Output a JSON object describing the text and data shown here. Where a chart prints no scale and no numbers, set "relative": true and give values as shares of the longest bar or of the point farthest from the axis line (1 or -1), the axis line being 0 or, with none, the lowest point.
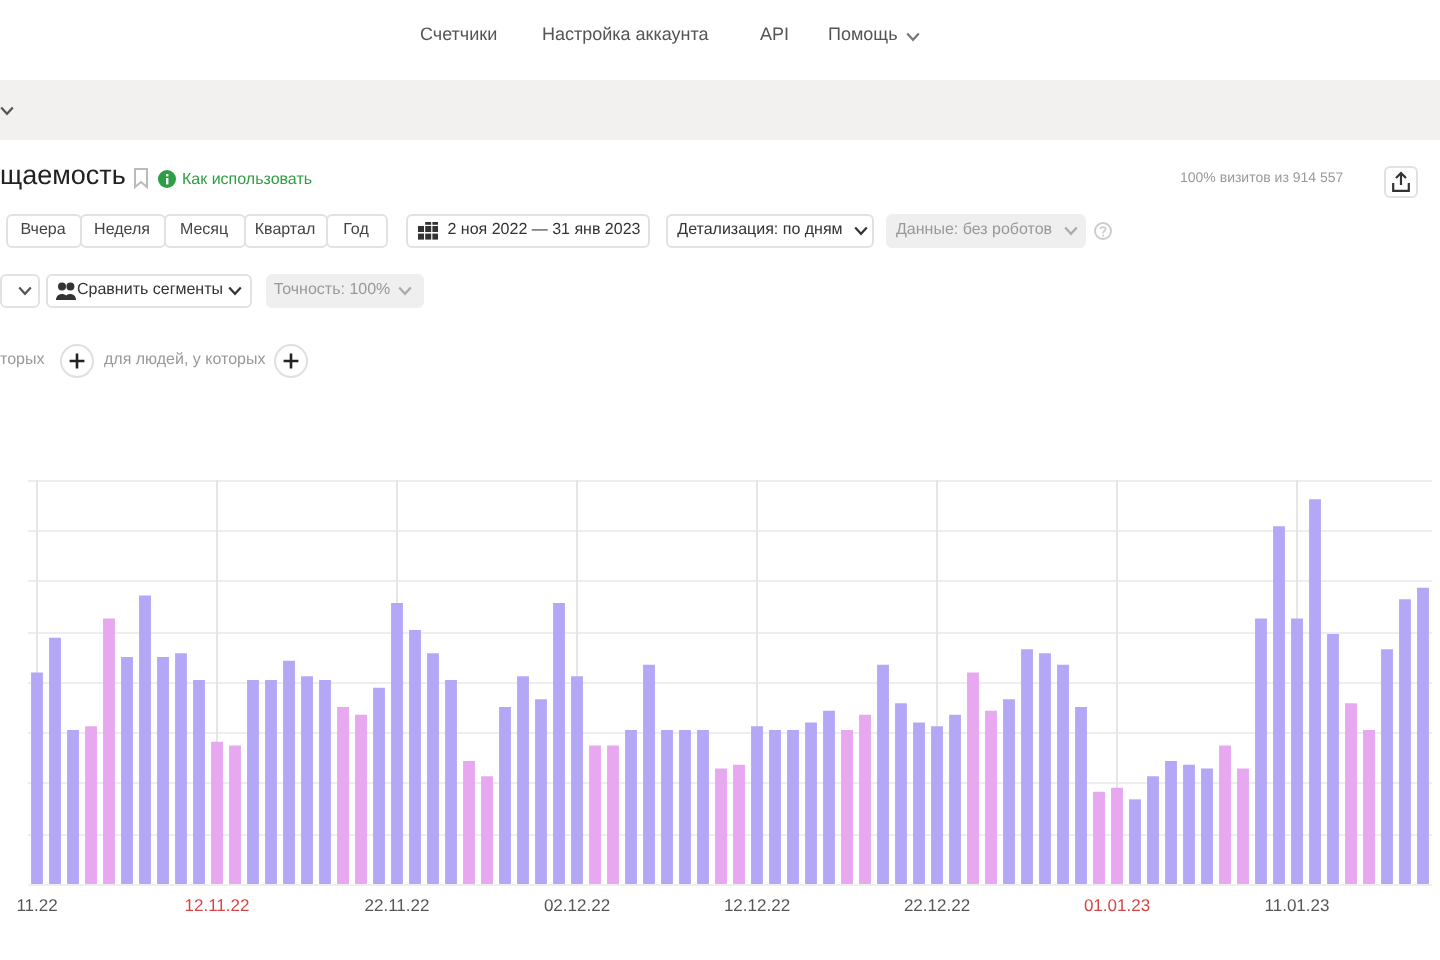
{
  "chart_data": {
    "type": "bar",
    "title": "щаемость",
    "annotations": [
      "Счетчики",
      "Настройка аккаунта",
      "API",
      "Помощь",
      "Как использовать",
      "100% визитов из 914 557",
      "Вчера",
      "Неделя",
      "Месяц",
      "Квартал",
      "Год",
      "2 ноя 2022 — 31 янв 2023",
      "Детализация: по дням",
      "Данные: без роботов",
      "Сравнить сегменты",
      "Точность: 100%",
      "торых",
      "для людей, у которых"
    ],
    "x": [
      "2022-11-02",
      "2022-11-03",
      "2022-11-04",
      "2022-11-05",
      "2022-11-06",
      "2022-11-07",
      "2022-11-08",
      "2022-11-09",
      "2022-11-10",
      "2022-11-11",
      "2022-11-12",
      "2022-11-13",
      "2022-11-14",
      "2022-11-15",
      "2022-11-16",
      "2022-11-17",
      "2022-11-18",
      "2022-11-19",
      "2022-11-20",
      "2022-11-21",
      "2022-11-22",
      "2022-11-23",
      "2022-11-24",
      "2022-11-25",
      "2022-11-26",
      "2022-11-27",
      "2022-11-28",
      "2022-11-29",
      "2022-11-30",
      "2022-12-01",
      "2022-12-02",
      "2022-12-03",
      "2022-12-04",
      "2022-12-05",
      "2022-12-06",
      "2022-12-07",
      "2022-12-08",
      "2022-12-09",
      "2022-12-10",
      "2022-12-11",
      "2022-12-12",
      "2022-12-13",
      "2022-12-14",
      "2022-12-15",
      "2022-12-16",
      "2022-12-17",
      "2022-12-18",
      "2022-12-19",
      "2022-12-20",
      "2022-12-21",
      "2022-12-22",
      "2022-12-23",
      "2022-12-24",
      "2022-12-25",
      "2022-12-26",
      "2022-12-27",
      "2022-12-28",
      "2022-12-29",
      "2022-12-30",
      "2022-12-31",
      "2023-01-01",
      "2023-01-02",
      "2023-01-03",
      "2023-01-04",
      "2023-01-05",
      "2023-01-06",
      "2023-01-07",
      "2023-01-08",
      "2023-01-09",
      "2023-01-10",
      "2023-01-11",
      "2023-01-12",
      "2023-01-13",
      "2023-01-14",
      "2023-01-15",
      "2023-01-16",
      "2023-01-17",
      "2023-01-18"
    ],
    "values": [
      0.55,
      0.64,
      0.4,
      0.41,
      0.69,
      0.59,
      0.75,
      0.59,
      0.6,
      0.53,
      0.37,
      0.36,
      0.53,
      0.53,
      0.58,
      0.54,
      0.53,
      0.46,
      0.44,
      0.51,
      0.73,
      0.66,
      0.6,
      0.53,
      0.32,
      0.28,
      0.46,
      0.54,
      0.48,
      0.73,
      0.54,
      0.36,
      0.36,
      0.4,
      0.57,
      0.4,
      0.4,
      0.4,
      0.3,
      0.31,
      0.41,
      0.4,
      0.4,
      0.42,
      0.45,
      0.4,
      0.44,
      0.57,
      0.47,
      0.42,
      0.41,
      0.44,
      0.55,
      0.45,
      0.48,
      0.61,
      0.6,
      0.57,
      0.46,
      0.24,
      0.25,
      0.22,
      0.28,
      0.32,
      0.31,
      0.3,
      0.36,
      0.3,
      0.69,
      0.93,
      0.69,
      1,
      0.65,
      0.47,
      0.4,
      0.61,
      0.74,
      0.77
    ],
    "colors": [
      "#b4a8f6",
      "#b4a8f6",
      "#b4a8f6",
      "#e7a8f0",
      "#e7a8f0",
      "#b4a8f6",
      "#b4a8f6",
      "#b4a8f6",
      "#b4a8f6",
      "#b4a8f6",
      "#e7a8f0",
      "#e7a8f0",
      "#b4a8f6",
      "#b4a8f6",
      "#b4a8f6",
      "#b4a8f6",
      "#b4a8f6",
      "#e7a8f0",
      "#e7a8f0",
      "#b4a8f6",
      "#b4a8f6",
      "#b4a8f6",
      "#b4a8f6",
      "#b4a8f6",
      "#e7a8f0",
      "#e7a8f0",
      "#b4a8f6",
      "#b4a8f6",
      "#b4a8f6",
      "#b4a8f6",
      "#b4a8f6",
      "#e7a8f0",
      "#e7a8f0",
      "#b4a8f6",
      "#b4a8f6",
      "#b4a8f6",
      "#b4a8f6",
      "#b4a8f6",
      "#e7a8f0",
      "#e7a8f0",
      "#b4a8f6",
      "#b4a8f6",
      "#b4a8f6",
      "#b4a8f6",
      "#b4a8f6",
      "#e7a8f0",
      "#e7a8f0",
      "#b4a8f6",
      "#b4a8f6",
      "#b4a8f6",
      "#b4a8f6",
      "#b4a8f6",
      "#e7a8f0",
      "#e7a8f0",
      "#b4a8f6",
      "#b4a8f6",
      "#b4a8f6",
      "#b4a8f6",
      "#b4a8f6",
      "#e7a8f0",
      "#e7a8f0",
      "#b4a8f6",
      "#b4a8f6",
      "#b4a8f6",
      "#b4a8f6",
      "#b4a8f6",
      "#e7a8f0",
      "#e7a8f0",
      "#b4a8f6",
      "#b4a8f6",
      "#b4a8f6",
      "#b4a8f6",
      "#b4a8f6",
      "#e7a8f0",
      "#e7a8f0",
      "#b4a8f6",
      "#b4a8f6",
      "#b4a8f6"
    ],
    "relative": true,
    "xlim": [
      "2022-11-01T12:00",
      "2023-01-18T12:00"
    ],
    "xticks": [
      {
        "value": "2022-11-02",
        "label": "11.22"
      },
      {
        "value": "2022-11-12",
        "label": "12.11.22"
      },
      {
        "value": "2022-11-22",
        "label": "22.11.22"
      },
      {
        "value": "2022-12-02",
        "label": "02.12.22"
      },
      {
        "value": "2022-12-12",
        "label": "12.12.22"
      },
      {
        "value": "2022-12-22",
        "label": "22.12.22"
      },
      {
        "value": "2023-01-01",
        "label": "01.01.23"
      },
      {
        "value": "2023-01-11",
        "label": "11.01.23"
      }
    ],
    "grid": true
  }
}
